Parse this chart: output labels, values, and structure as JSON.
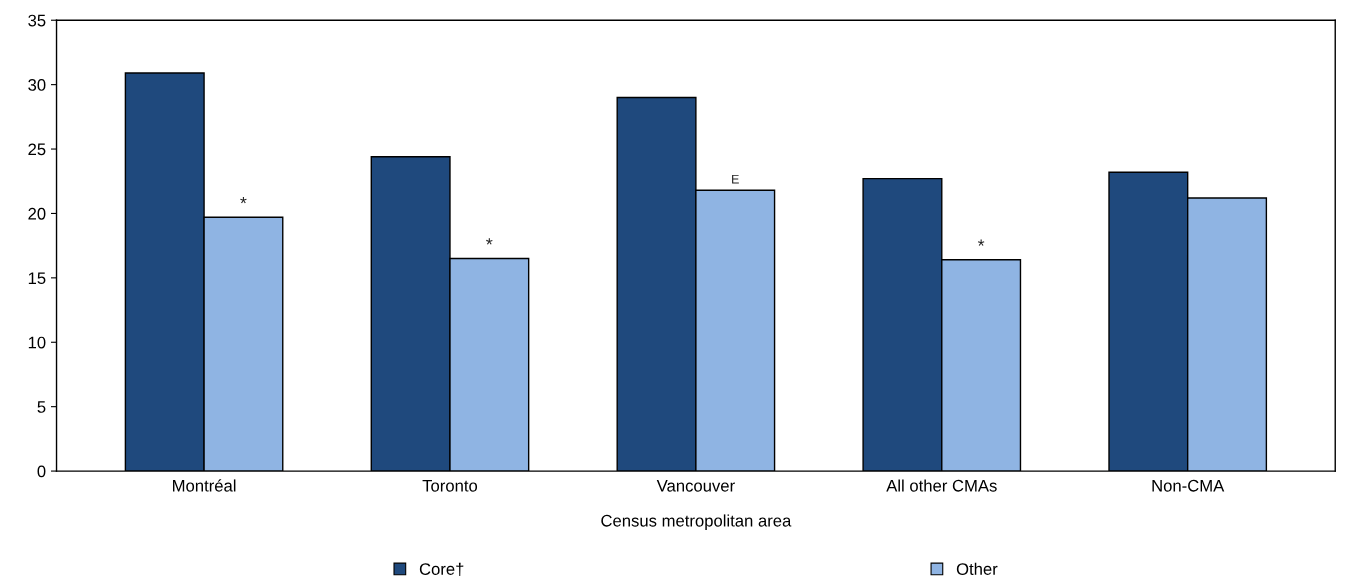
{
  "chart_data": {
    "type": "bar",
    "xlabel": "Census metropolitan area",
    "categories": [
      "Montréal",
      "Toronto",
      "Vancouver",
      "All other CMAs",
      "Non-CMA"
    ],
    "series": [
      {
        "name": "Core†",
        "color": "#1f497d",
        "values": [
          30.9,
          24.4,
          29.0,
          22.7,
          23.2
        ]
      },
      {
        "name": "Other",
        "color": "#8fb4e3",
        "values": [
          19.7,
          16.5,
          21.8,
          16.4,
          21.2
        ]
      }
    ],
    "ylim": [
      0,
      35
    ],
    "yticks": [
      0,
      5,
      10,
      15,
      20,
      25,
      30,
      35
    ],
    "grid": false,
    "legend": "bottom",
    "annotations": [
      {
        "text": "*",
        "x": "Montréal",
        "y": 19.7
      },
      {
        "text": "*",
        "x": "Toronto",
        "y": 16.5
      },
      {
        "text": "E",
        "x": "Vancouver",
        "y": 21.8
      },
      {
        "text": "*",
        "x": "All other CMAs",
        "y": 16.4
      }
    ]
  }
}
